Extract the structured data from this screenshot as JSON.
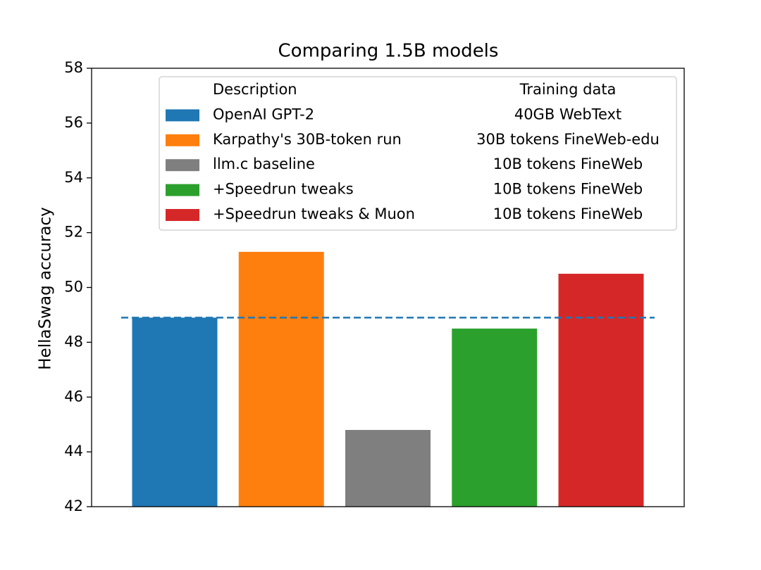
{
  "chart_data": {
    "type": "bar",
    "title": "Comparing 1.5B models",
    "y_label": "HellaSwag accuracy",
    "legend_headers": [
      "Description",
      "Training data"
    ],
    "series": [
      {
        "name": "OpenAI GPT-2",
        "training_data": "40GB WebText",
        "color": "#1f77b4",
        "values": [
          48.9
        ]
      },
      {
        "name": "Karpathy's 30B-token run",
        "training_data": "30B tokens FineWeb-edu",
        "color": "#ff7f0e",
        "values": [
          51.3
        ]
      },
      {
        "name": "llm.c baseline",
        "training_data": "10B tokens FineWeb",
        "color": "#7f7f7f",
        "values": [
          44.8
        ]
      },
      {
        "name": "+Speedrun tweaks",
        "training_data": "10B tokens FineWeb",
        "color": "#2ca02c",
        "values": [
          48.5
        ]
      },
      {
        "name": "+Speedrun tweaks & Muon",
        "training_data": "10B tokens FineWeb",
        "color": "#d62728",
        "values": [
          50.5
        ]
      }
    ],
    "reference_line": {
      "value": 48.9,
      "color": "#1f77b4",
      "style": "dashed"
    },
    "ylim": [
      42,
      58
    ],
    "yticks": [
      42,
      44,
      46,
      48,
      50,
      52,
      54,
      56,
      58
    ],
    "grid": false
  }
}
